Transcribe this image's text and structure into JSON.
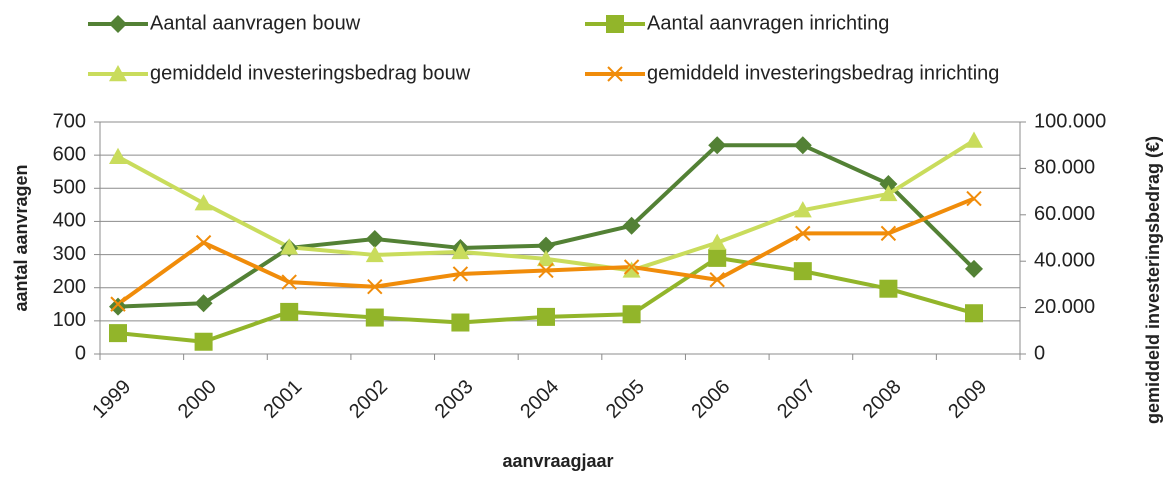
{
  "chart_data": {
    "type": "line",
    "x_label": "aanvraagjaar",
    "y_label": "aantal aanvragen",
    "y2_label": "gemiddeld investeringsbedrag (€)",
    "categories": [
      "1999",
      "2000",
      "2001",
      "2002",
      "2003",
      "2004",
      "2005",
      "2006",
      "2007",
      "2008",
      "2009"
    ],
    "ylim": [
      0,
      700
    ],
    "yticks": [
      0,
      100,
      200,
      300,
      400,
      500,
      600,
      700
    ],
    "y2lim": [
      0,
      100000
    ],
    "y2ticks": [
      0,
      {
        "value": 20000,
        "label": "20.000"
      },
      {
        "value": 40000,
        "label": "40.000"
      },
      {
        "value": 60000,
        "label": "60.000"
      },
      {
        "value": 80000,
        "label": "80.000"
      },
      {
        "value": 100000,
        "label": "100.000"
      }
    ],
    "grid": true,
    "legend": "top",
    "series": [
      {
        "name": "Aantal aanvragen bouw",
        "color": "#538135",
        "marker": "diamond",
        "values": [
          143,
          153,
          320,
          347,
          320,
          327,
          387,
          630,
          630,
          513,
          257
        ]
      },
      {
        "name": "Aantal aanvragen inrichting",
        "color": "#92b52a",
        "marker": "square",
        "values": [
          63,
          37,
          127,
          110,
          95,
          112,
          120,
          290,
          250,
          197,
          123
        ]
      },
      {
        "name": "gemiddeld investeringsbedrag bouw",
        "color": "#c9dc5c",
        "marker": "triangle",
        "axis": "y2",
        "values": [
          85000,
          65000,
          46000,
          42700,
          44000,
          41000,
          36000,
          48000,
          62000,
          69000,
          92000
        ]
      },
      {
        "name": "gemiddeld investeringsbedrag inrichting",
        "color": "#f08c0a",
        "marker": "x",
        "axis": "y2",
        "values": [
          21500,
          48000,
          31000,
          29000,
          34500,
          36000,
          37500,
          32000,
          52000,
          52000,
          67000
        ]
      }
    ]
  }
}
